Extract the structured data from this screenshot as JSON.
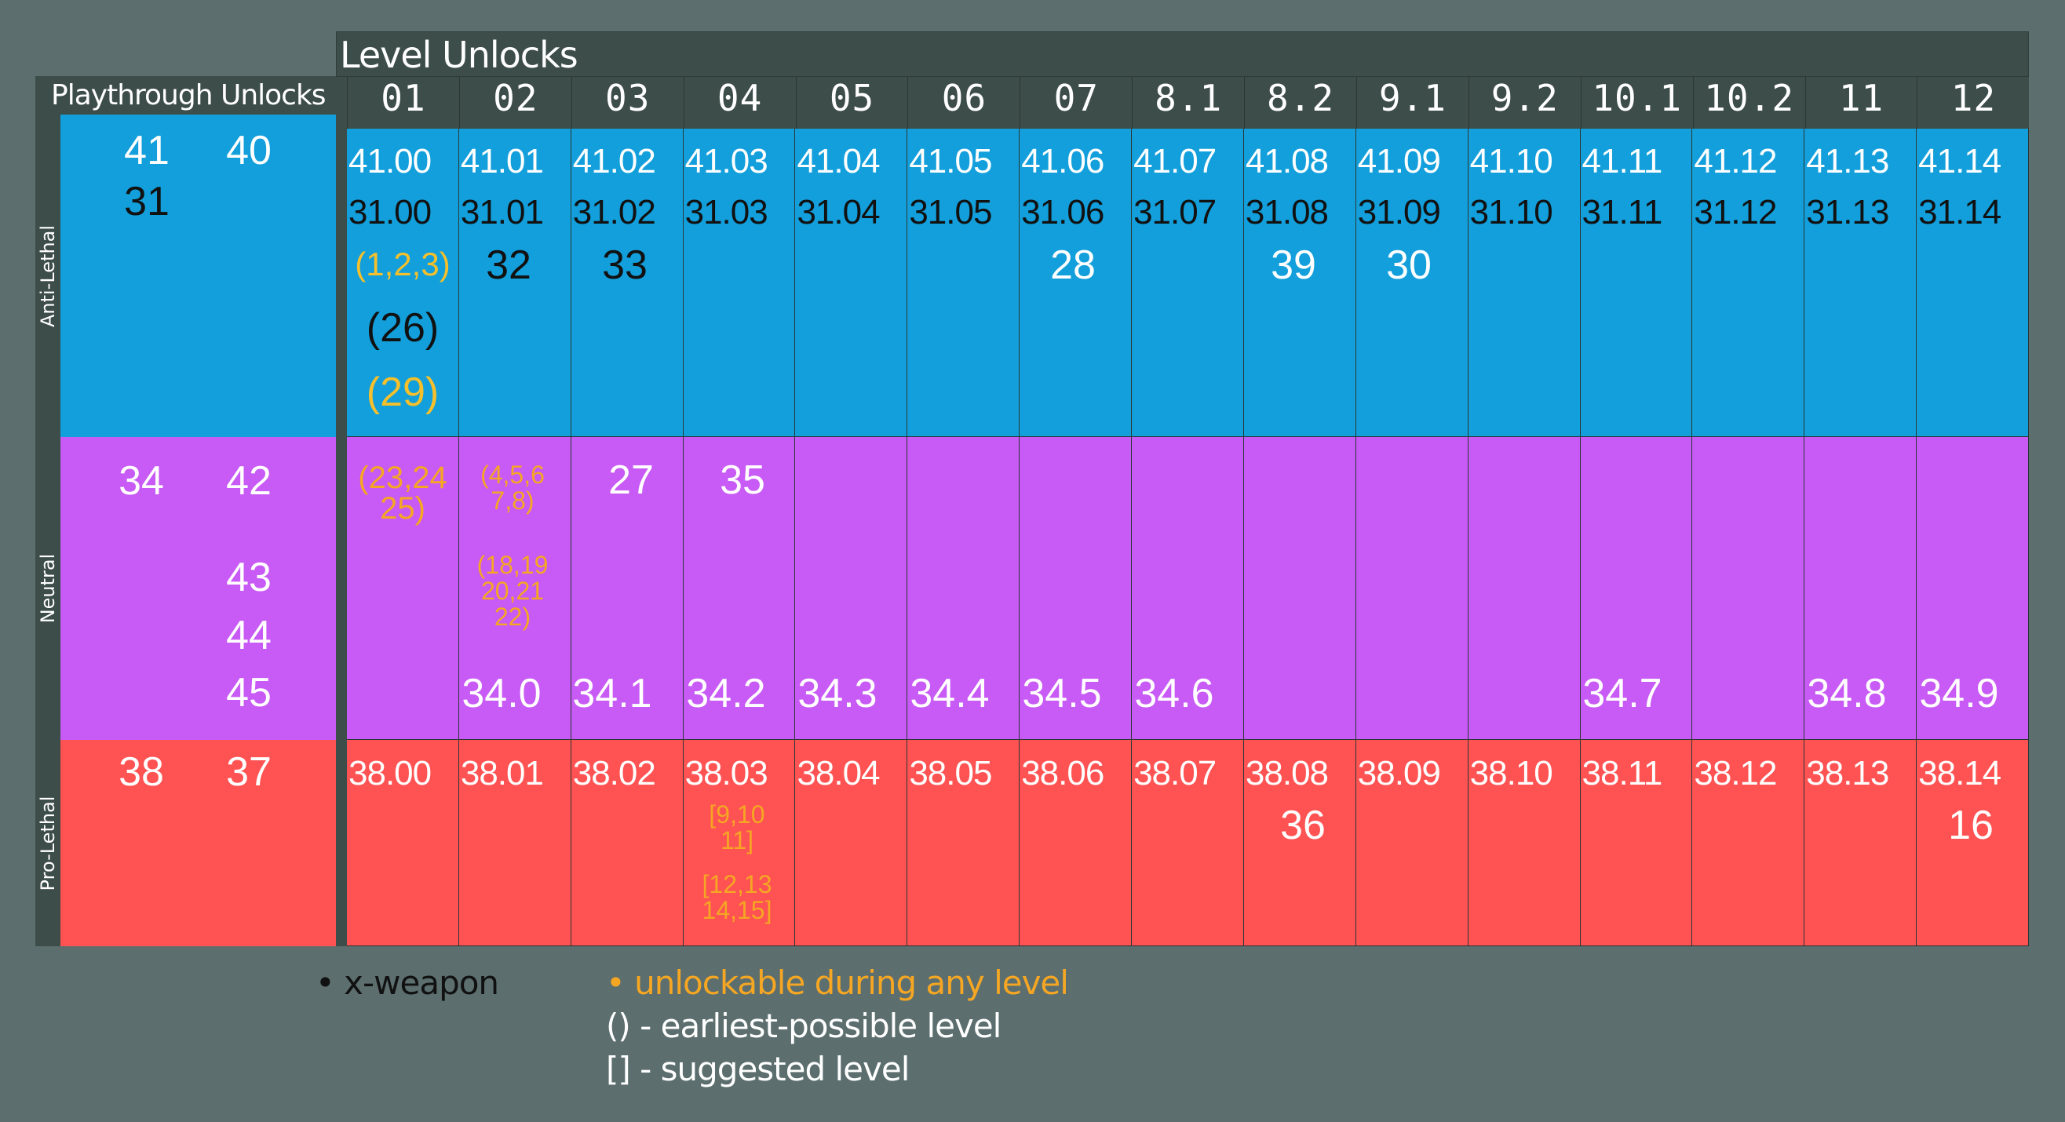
{
  "colors": {
    "background": "#5c6e6e",
    "header": "#3d4d49",
    "anti_lethal": "#129fdb",
    "neutral": "#c85af5",
    "pro_lethal": "#ff5252",
    "yellow": "#f5c02b",
    "orange": "#f5a623",
    "text_dark": "#111111",
    "text_white": "#ffffff"
  },
  "playthrough": {
    "title": "Playthrough Unlocks",
    "rows": [
      {
        "label": "Anti-Lethal",
        "items": [
          "41",
          "40",
          "31"
        ]
      },
      {
        "label": "Neutral",
        "items": [
          "34",
          "42",
          "43",
          "44",
          "45"
        ]
      },
      {
        "label": "Pro-Lethal",
        "items": [
          "38",
          "37"
        ]
      }
    ]
  },
  "level_unlocks": {
    "title": "Level Unlocks",
    "columns": [
      "01",
      "02",
      "03",
      "04",
      "05",
      "06",
      "07",
      "8.1",
      "8.2",
      "9.1",
      "9.2",
      "10.1",
      "10.2",
      "11",
      "12"
    ],
    "anti_lethal_41": [
      "41.00",
      "41.01",
      "41.02",
      "41.03",
      "41.04",
      "41.05",
      "41.06",
      "41.07",
      "41.08",
      "41.09",
      "41.10",
      "41.11",
      "41.12",
      "41.13",
      "41.14"
    ],
    "anti_lethal_31": [
      "31.00",
      "31.01",
      "31.02",
      "31.03",
      "31.04",
      "31.05",
      "31.06",
      "31.07",
      "31.08",
      "31.09",
      "31.10",
      "31.11",
      "31.12",
      "31.13",
      "31.14"
    ],
    "anti_lethal_extra": {
      "c01": [
        "(1,2,3)",
        "(26)",
        "(29)"
      ],
      "c02": "32",
      "c03": "33",
      "c07": "28",
      "c82": "39",
      "c91": "30"
    },
    "neutral_top": {
      "c01": [
        "(23,24",
        "25)"
      ],
      "c02a": [
        "(4,5,6",
        "7,8)"
      ],
      "c02b": [
        "(18,19",
        "20,21",
        "22)"
      ],
      "c03": "27",
      "c04": "35"
    },
    "neutral_34": {
      "c02": "34.0",
      "c03": "34.1",
      "c04": "34.2",
      "c05": "34.3",
      "c06": "34.4",
      "c07": "34.5",
      "c81": "34.6",
      "c101": "34.7",
      "c11": "34.8",
      "c12": "34.9"
    },
    "pro_lethal_38": [
      "38.00",
      "38.01",
      "38.02",
      "38.03",
      "38.04",
      "38.05",
      "38.06",
      "38.07",
      "38.08",
      "38.09",
      "38.10",
      "38.11",
      "38.12",
      "38.13",
      "38.14"
    ],
    "pro_lethal_extra": {
      "c04a": [
        "[9,10",
        "11]"
      ],
      "c04b": [
        "[12,13",
        "14,15]"
      ],
      "c82": "36",
      "c12": "16"
    }
  },
  "legend": {
    "x_weapon": "• x-weapon",
    "any_level": "• unlockable during any level",
    "earliest": "() - earliest-possible level",
    "suggested": "[] - suggested level"
  }
}
